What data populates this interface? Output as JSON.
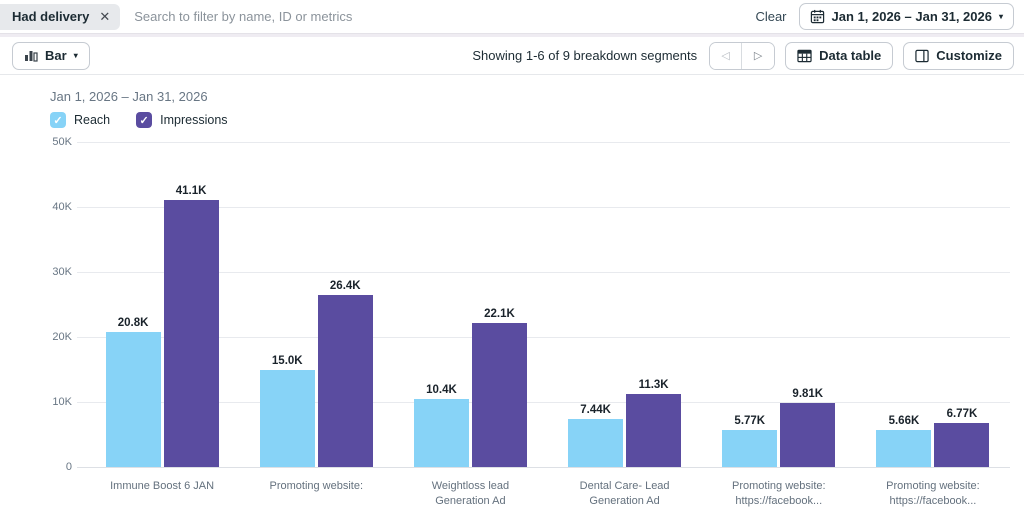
{
  "filter_bar": {
    "chip_label": "Had delivery",
    "search_placeholder": "Search to filter by name, ID or metrics",
    "clear_label": "Clear",
    "date_range": "Jan 1, 2026 – Jan 31, 2026"
  },
  "toolbar": {
    "chart_type_label": "Bar",
    "showing_text": "Showing 1-6 of 9 breakdown segments",
    "data_table_label": "Data table",
    "customize_label": "Customize"
  },
  "icons": {
    "close": "✕",
    "caret_down": "▾",
    "prev": "◁",
    "next": "▷",
    "check": "✓"
  },
  "chart_header": {
    "date_range": "Jan 1, 2026 – Jan 31, 2026"
  },
  "chart_data": {
    "type": "bar",
    "title": "Jan 1, 2026 – Jan 31, 2026",
    "categories": [
      "Immune Boost 6 JAN",
      "Promoting website:",
      "Weightloss lead\nGeneration Ad",
      "Dental Care- Lead\nGeneration Ad",
      "Promoting website:\nhttps://facebook...",
      "Promoting website:\nhttps://facebook..."
    ],
    "series": [
      {
        "name": "Reach",
        "color": "#87d3f7",
        "values": [
          20800,
          15000,
          10400,
          7440,
          5770,
          5660
        ],
        "labels": [
          "20.8K",
          "15.0K",
          "10.4K",
          "7.44K",
          "5.77K",
          "5.66K"
        ]
      },
      {
        "name": "Impressions",
        "color": "#5a4ca0",
        "values": [
          41100,
          26400,
          22100,
          11300,
          9810,
          6770
        ],
        "labels": [
          "41.1K",
          "26.4K",
          "22.1K",
          "11.3K",
          "9.81K",
          "6.77K"
        ]
      }
    ],
    "ylim": [
      0,
      50000
    ],
    "yticks": [
      {
        "label": "0",
        "value": 0
      },
      {
        "label": "10K",
        "value": 10000
      },
      {
        "label": "20K",
        "value": 20000
      },
      {
        "label": "30K",
        "value": 30000
      },
      {
        "label": "40K",
        "value": 40000
      },
      {
        "label": "50K",
        "value": 50000
      }
    ],
    "grid": true,
    "legend_position": "top-left",
    "ylabel": "",
    "xlabel": ""
  }
}
